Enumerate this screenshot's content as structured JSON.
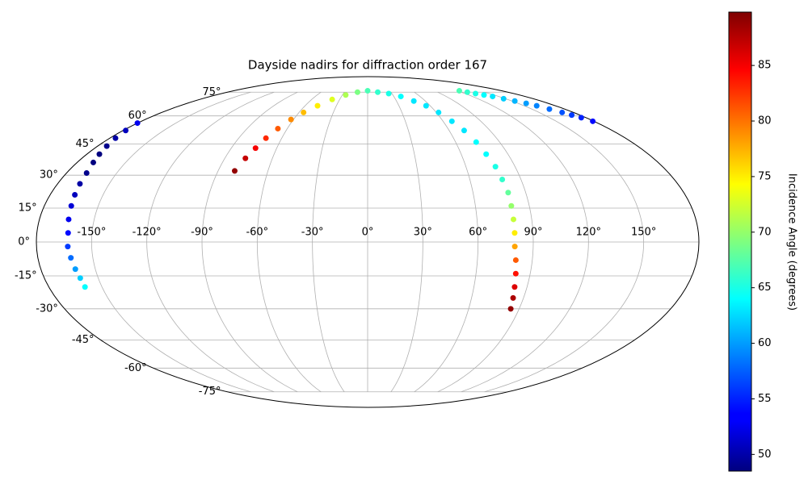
{
  "chart_data": {
    "type": "scatter",
    "projection": "mollweide",
    "title": "Dayside nadirs for diffraction order 167",
    "colorbar_label": "Incidence Angle (degrees)",
    "colormap": "jet",
    "grid": true,
    "clim": [
      48.5,
      89.8
    ],
    "cticks": [
      50,
      55,
      60,
      65,
      70,
      75,
      80,
      85
    ],
    "xlim": [
      -180,
      180
    ],
    "ylim": [
      -90,
      90
    ],
    "xticks": [
      {
        "value": -150,
        "label": "-150°"
      },
      {
        "value": -120,
        "label": "-120°"
      },
      {
        "value": -90,
        "label": "-90°"
      },
      {
        "value": -60,
        "label": "-60°"
      },
      {
        "value": -30,
        "label": "-30°"
      },
      {
        "value": 0,
        "label": "0°"
      },
      {
        "value": 30,
        "label": "30°"
      },
      {
        "value": 60,
        "label": "60°"
      },
      {
        "value": 90,
        "label": "90°"
      },
      {
        "value": 120,
        "label": "120°"
      },
      {
        "value": 150,
        "label": "150°"
      }
    ],
    "yticks": [
      {
        "value": -75,
        "label": "-75°"
      },
      {
        "value": -60,
        "label": "-60°"
      },
      {
        "value": -45,
        "label": "-45°"
      },
      {
        "value": -30,
        "label": "-30°"
      },
      {
        "value": -15,
        "label": "-15°"
      },
      {
        "value": 0,
        "label": "0°"
      },
      {
        "value": 15,
        "label": "15°"
      },
      {
        "value": 30,
        "label": "30°"
      },
      {
        "value": 45,
        "label": "45°"
      },
      {
        "value": 60,
        "label": "60°"
      },
      {
        "value": 75,
        "label": "75°"
      }
    ],
    "x": [
      -80,
      -77,
      -74,
      -71,
      -67,
      -62,
      -56,
      -48,
      -38,
      -26,
      -13,
      0,
      13,
      26,
      38,
      48,
      56,
      62,
      67,
      71,
      74,
      76,
      78,
      79,
      80,
      80,
      80,
      80,
      80,
      81,
      82,
      83,
      84,
      85,
      123,
      128,
      133,
      138,
      143,
      148,
      153,
      158,
      162,
      166,
      170,
      173,
      176,
      179,
      -180,
      -178,
      -176,
      -174,
      -172,
      -170,
      -168,
      -167,
      -166,
      -165,
      -164,
      -163,
      -163,
      -162,
      -161,
      -160,
      -159.6
    ],
    "y": [
      32,
      38,
      43,
      48,
      53,
      58,
      62,
      66,
      70,
      73,
      75,
      76,
      75,
      74,
      72,
      69,
      66,
      62,
      57,
      52,
      46,
      40,
      34,
      28,
      22,
      16,
      10,
      4,
      -2,
      -8,
      -14,
      -20,
      -25,
      -30,
      76,
      75,
      74,
      73,
      72,
      70.5,
      69,
      67.5,
      66,
      64,
      62,
      60.5,
      59,
      57,
      56,
      52,
      48,
      44,
      40,
      36,
      31,
      26,
      21,
      16,
      10,
      4,
      -2,
      -7,
      -12,
      -16,
      -20
    ],
    "values": [
      89,
      87,
      85,
      83,
      81,
      79,
      77,
      75,
      73,
      71,
      69,
      67,
      66,
      65,
      64,
      63,
      63,
      63,
      63,
      63,
      64,
      64,
      65,
      66,
      68,
      70,
      72,
      75,
      78,
      81,
      84,
      86,
      88,
      89,
      67,
      66,
      65,
      64,
      63,
      62,
      61,
      60,
      59,
      58,
      57,
      56,
      55,
      54,
      53,
      51,
      50,
      49,
      48.5,
      48.5,
      49,
      50,
      51,
      52,
      53,
      54,
      56,
      58,
      60,
      62,
      64
    ]
  }
}
